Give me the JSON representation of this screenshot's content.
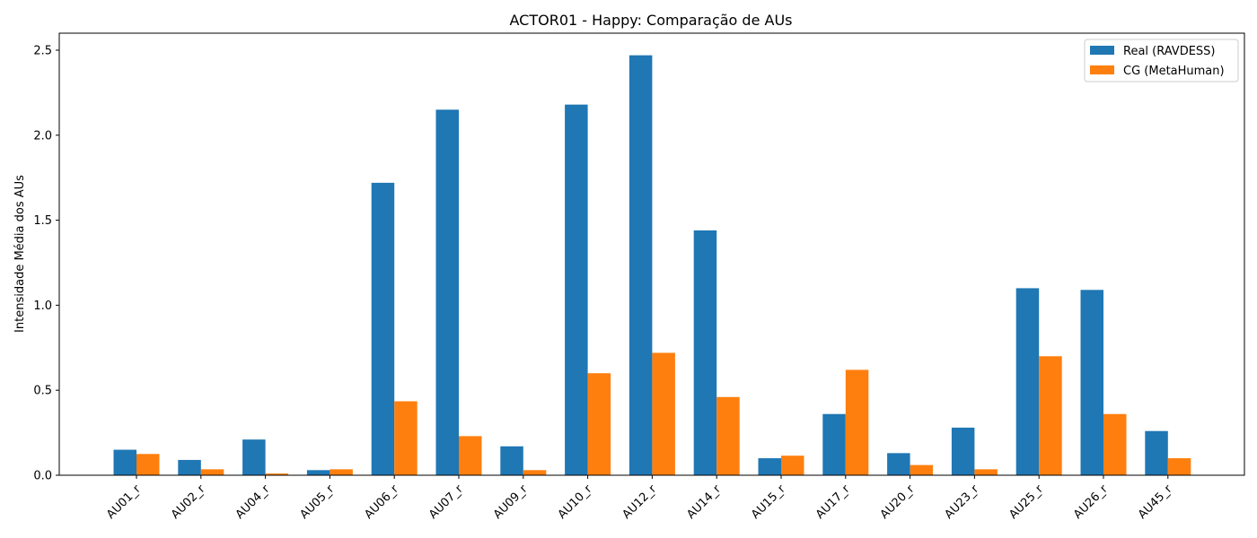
{
  "chart_data": {
    "type": "bar",
    "title": "ACTOR01 - Happy: Comparação de AUs",
    "xlabel": "",
    "ylabel": "Intensidade Média dos AUs",
    "ylim": [
      0,
      2.6
    ],
    "yticks": [
      "0.0",
      "0.5",
      "1.0",
      "1.5",
      "2.0",
      "2.5"
    ],
    "categories": [
      "AU01_r",
      "AU02_r",
      "AU04_r",
      "AU05_r",
      "AU06_r",
      "AU07_r",
      "AU09_r",
      "AU10_r",
      "AU12_r",
      "AU14_r",
      "AU15_r",
      "AU17_r",
      "AU20_r",
      "AU23_r",
      "AU25_r",
      "AU26_r",
      "AU45_r"
    ],
    "series": [
      {
        "name": "Real (RAVDESS)",
        "color": "#1f77b4",
        "values": [
          0.15,
          0.09,
          0.21,
          0.03,
          1.72,
          2.15,
          0.17,
          2.18,
          2.47,
          1.44,
          0.1,
          0.36,
          0.13,
          0.28,
          1.1,
          1.09,
          0.26
        ]
      },
      {
        "name": "CG (MetaHuman)",
        "color": "#ff7f0e",
        "values": [
          0.125,
          0.035,
          0.01,
          0.035,
          0.435,
          0.23,
          0.03,
          0.6,
          0.72,
          0.46,
          0.115,
          0.62,
          0.06,
          0.035,
          0.7,
          0.36,
          0.1
        ]
      }
    ],
    "grid": false,
    "legend_position": "top-right"
  }
}
